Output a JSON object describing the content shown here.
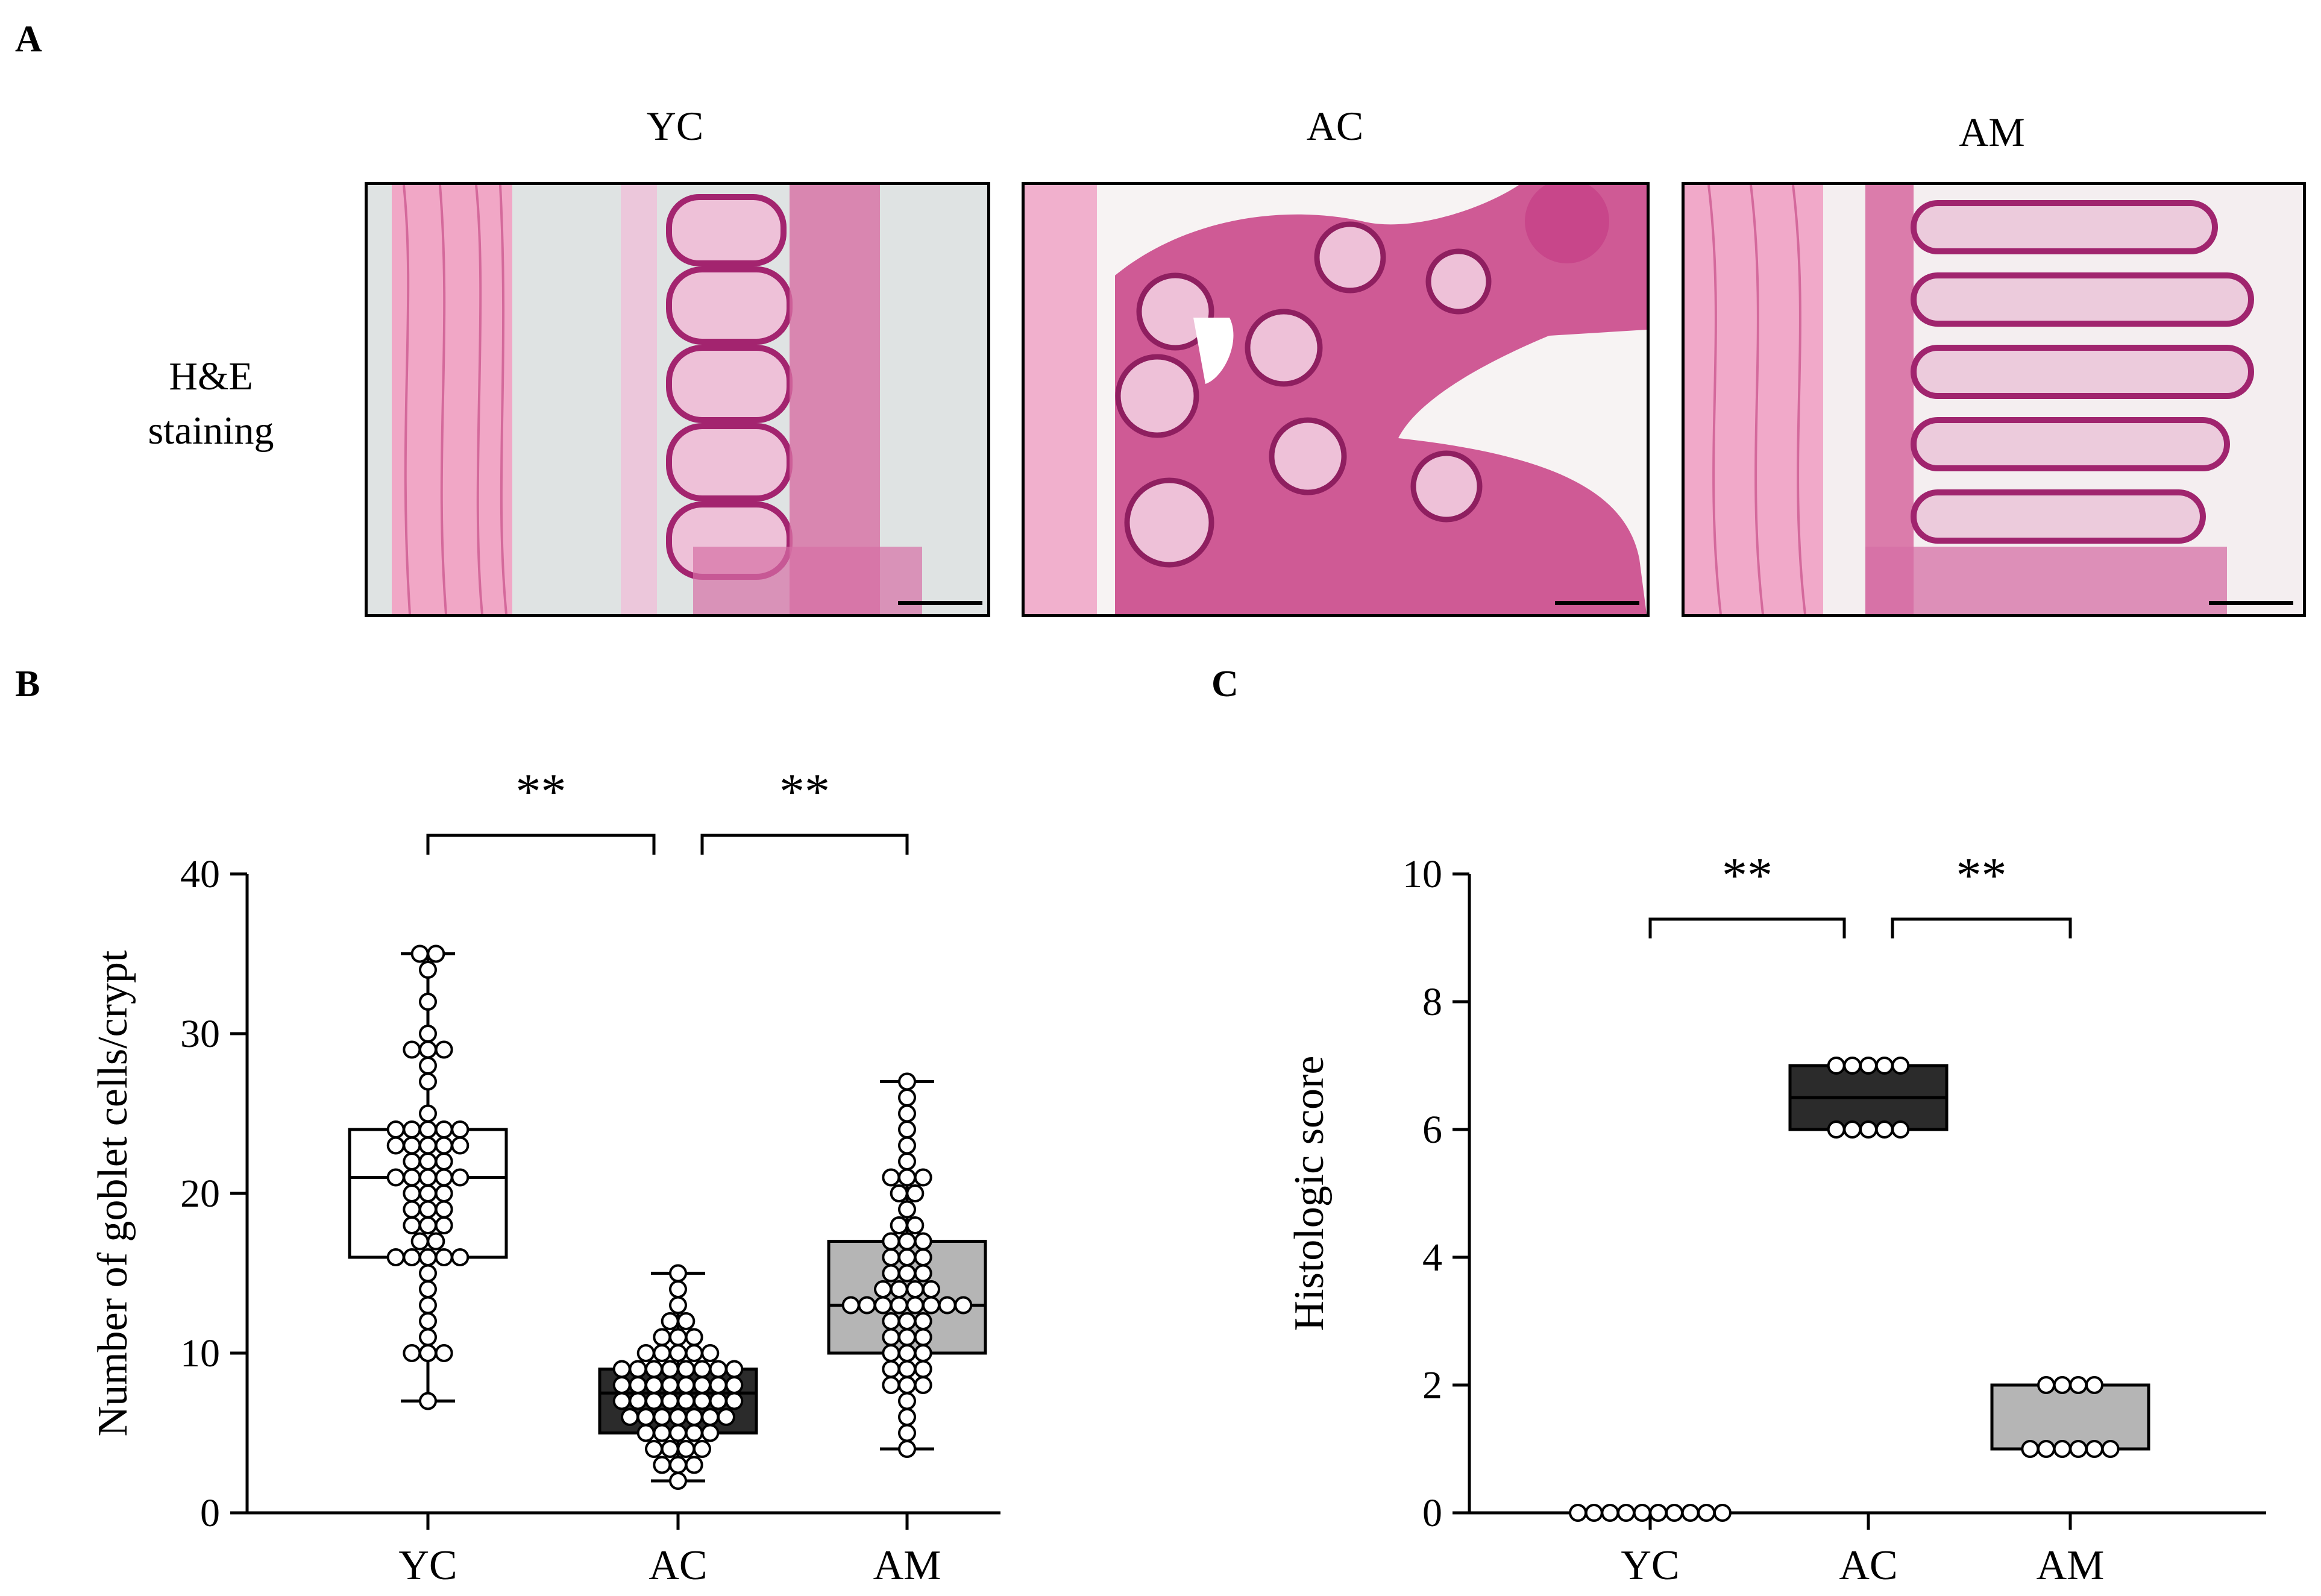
{
  "panels": {
    "a": "A",
    "b": "B",
    "c": "C"
  },
  "he_images": {
    "row_label_line1": "H&E",
    "row_label_line2": "staining",
    "titles": [
      "YC",
      "AC",
      "AM"
    ]
  },
  "colors": {
    "yc_box": "#ffffff",
    "ac_box": "#2b2b2b",
    "am_box": "#b5b5b5",
    "stain_pink": "#e58fb8",
    "stain_purple": "#a3246f",
    "background_slide": "#dfe3e3"
  },
  "chart_data": [
    {
      "type": "box",
      "panel": "B",
      "categories": [
        "YC",
        "AC",
        "AM"
      ],
      "ylabel": "Number of goblet cells/crypt",
      "ylim": [
        0,
        40
      ],
      "yticks": [
        0,
        10,
        20,
        30,
        40
      ],
      "boxes": [
        {
          "name": "YC",
          "min": 7,
          "q1": 16,
          "median": 21,
          "q3": 24,
          "max": 35
        },
        {
          "name": "AC",
          "min": 2,
          "q1": 5,
          "median": 7.5,
          "q3": 9,
          "max": 15
        },
        {
          "name": "AM",
          "min": 4,
          "q1": 10,
          "median": 13,
          "q3": 17,
          "max": 27
        }
      ],
      "points": [
        [
          35,
          35,
          34,
          32,
          30,
          29,
          29,
          29,
          28,
          27,
          25,
          24,
          24,
          24,
          24,
          24,
          23,
          23,
          23,
          23,
          23,
          22,
          22,
          22,
          21,
          21,
          21,
          21,
          21,
          20,
          20,
          20,
          19,
          19,
          19,
          18,
          18,
          18,
          17,
          17,
          16,
          16,
          16,
          16,
          16,
          15,
          14,
          13,
          12,
          11,
          10,
          10,
          10,
          7
        ],
        [
          15,
          14,
          13,
          12,
          12,
          11,
          11,
          11,
          10,
          10,
          10,
          10,
          10,
          9,
          9,
          9,
          9,
          9,
          9,
          9,
          9,
          8,
          8,
          8,
          8,
          8,
          8,
          8,
          8,
          7,
          7,
          7,
          7,
          7,
          7,
          7,
          7,
          6,
          6,
          6,
          6,
          6,
          6,
          6,
          5,
          5,
          5,
          5,
          5,
          4,
          4,
          4,
          4,
          3,
          3,
          3,
          2
        ],
        [
          27,
          26,
          25,
          24,
          23,
          22,
          21,
          21,
          21,
          20,
          20,
          19,
          18,
          18,
          17,
          17,
          17,
          16,
          16,
          16,
          15,
          15,
          15,
          14,
          14,
          14,
          14,
          13,
          13,
          13,
          13,
          13,
          13,
          13,
          13,
          12,
          12,
          12,
          11,
          11,
          11,
          10,
          10,
          10,
          9,
          9,
          9,
          8,
          8,
          8,
          7,
          6,
          5,
          4
        ]
      ],
      "significance": [
        {
          "from": "YC",
          "to": "AC",
          "label": "**"
        },
        {
          "from": "AC",
          "to": "AM",
          "label": "**"
        }
      ]
    },
    {
      "type": "box",
      "panel": "C",
      "categories": [
        "YC",
        "AC",
        "AM"
      ],
      "ylabel": "Histologic score",
      "ylim": [
        0,
        10
      ],
      "yticks": [
        0,
        2,
        4,
        6,
        8,
        10
      ],
      "boxes": [
        {
          "name": "YC",
          "min": 0,
          "q1": 0,
          "median": 0,
          "q3": 0,
          "max": 0
        },
        {
          "name": "AC",
          "min": 6,
          "q1": 6,
          "median": 6.5,
          "q3": 7,
          "max": 7
        },
        {
          "name": "AM",
          "min": 1,
          "q1": 1,
          "median": 1,
          "q3": 2,
          "max": 2
        }
      ],
      "points": [
        [
          0,
          0,
          0,
          0,
          0,
          0,
          0,
          0,
          0,
          0
        ],
        [
          7,
          7,
          7,
          7,
          7,
          6,
          6,
          6,
          6,
          6
        ],
        [
          2,
          2,
          2,
          2,
          1,
          1,
          1,
          1,
          1,
          1
        ]
      ],
      "significance": [
        {
          "from": "YC",
          "to": "AC",
          "label": "**"
        },
        {
          "from": "AC",
          "to": "AM",
          "label": "**"
        }
      ]
    }
  ]
}
